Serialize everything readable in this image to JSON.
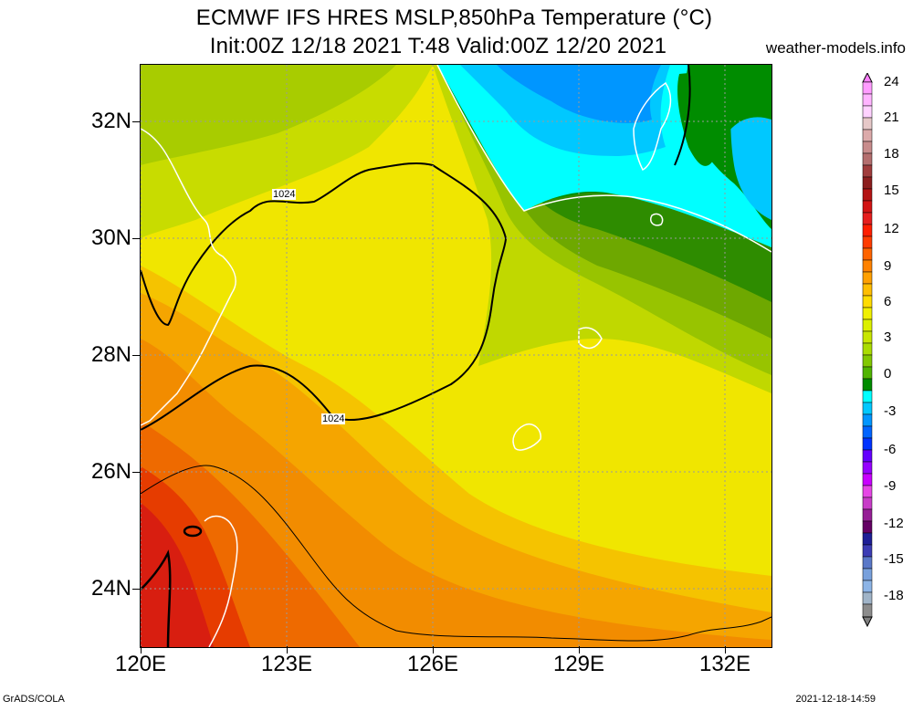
{
  "header": {
    "line1": "ECMWF IFS HRES MSLP,850hPa Temperature (°C)",
    "line2": "Init:00Z 12/18 2021 T:48 Valid:00Z 12/20 2021",
    "site": "weather-models.info"
  },
  "axes": {
    "lat_labels": [
      "32N",
      "30N",
      "28N",
      "26N",
      "24N"
    ],
    "lon_labels": [
      "120E",
      "123E",
      "126E",
      "129E",
      "132E"
    ]
  },
  "contour_labels": [
    "1024",
    "1024"
  ],
  "colorbar": {
    "labels": [
      "24",
      "21",
      "18",
      "15",
      "12",
      "9",
      "6",
      "3",
      "0",
      "-3",
      "-6",
      "-9",
      "-12",
      "-15",
      "-18"
    ]
  },
  "footer": {
    "left": "GrADS/COLA",
    "right": "2021-12-18-14:59"
  }
}
